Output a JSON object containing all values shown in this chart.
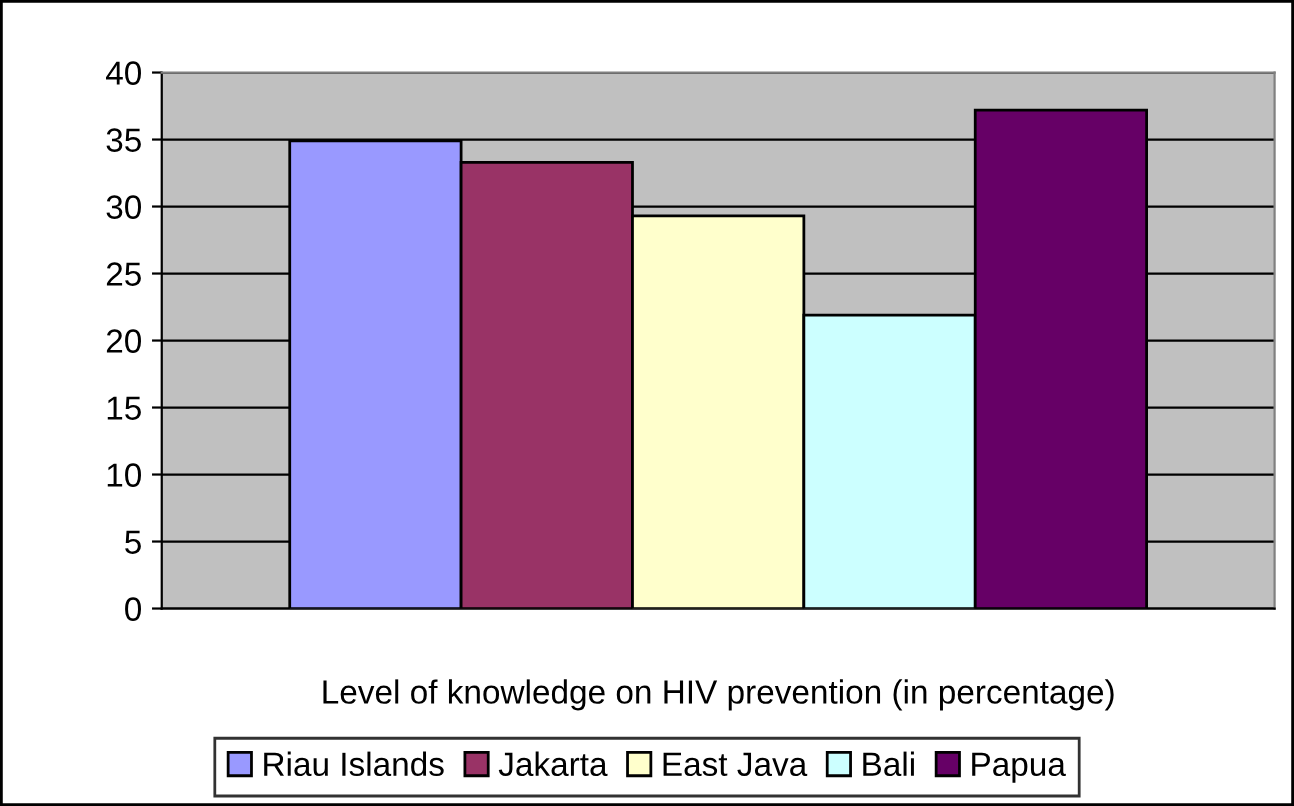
{
  "chart_data": {
    "type": "bar",
    "xlabel": "Level of knowledge on HIV prevention (in percentage)",
    "categories": [
      null
    ],
    "series": [
      {
        "name": "Riau Islands",
        "color": "#9999ff",
        "values": [
          34.9
        ]
      },
      {
        "name": "Jakarta",
        "color": "#993366",
        "values": [
          33.3
        ]
      },
      {
        "name": "East Java",
        "color": "#ffffcc",
        "values": [
          29.3
        ]
      },
      {
        "name": "Bali",
        "color": "#ccffff",
        "values": [
          21.9
        ]
      },
      {
        "name": "Papua",
        "color": "#660066",
        "values": [
          37.2
        ]
      }
    ],
    "ylim": [
      0,
      40
    ],
    "yticks": [
      0,
      5,
      10,
      15,
      20,
      25,
      30,
      35,
      40
    ],
    "grid": "y",
    "legend": "bottom"
  }
}
